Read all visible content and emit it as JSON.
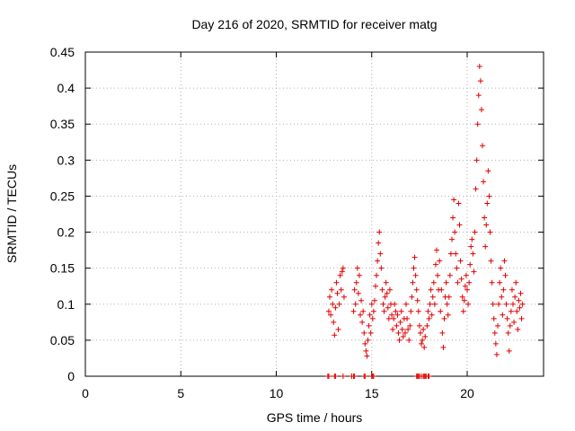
{
  "chart_data": {
    "type": "scatter",
    "title": "Day 216 of 2020, SRMTID for receiver matg",
    "xlabel": "GPS time / hours",
    "ylabel": "SRMTID / TECUs",
    "xlim": [
      0,
      24
    ],
    "ylim": [
      0,
      0.45
    ],
    "x_ticks": [
      0,
      5,
      10,
      15,
      20
    ],
    "x_tick_labels": [
      "0",
      "5",
      "10",
      "15",
      "20"
    ],
    "y_ticks": [
      0,
      0.05,
      0.1,
      0.15,
      0.2,
      0.25,
      0.3,
      0.35,
      0.4,
      0.45
    ],
    "y_tick_labels": [
      "0",
      "0.05",
      "0.1",
      "0.15",
      "0.2",
      "0.25",
      "0.3",
      "0.35",
      "0.4",
      "0.45"
    ],
    "grid": true,
    "marker": "plus",
    "point_color": "#e00000",
    "series": [
      {
        "name": "SRMTID",
        "points": [
          [
            12.7,
            0
          ],
          [
            12.75,
            0
          ],
          [
            13.05,
            0
          ],
          [
            13.1,
            0
          ],
          [
            13.5,
            0
          ],
          [
            13.95,
            0
          ],
          [
            14.05,
            0
          ],
          [
            14.1,
            0
          ],
          [
            14.6,
            0
          ],
          [
            14.65,
            0
          ],
          [
            15.0,
            0
          ],
          [
            15.05,
            0
          ],
          [
            15.1,
            0
          ],
          [
            17.35,
            0
          ],
          [
            17.4,
            0
          ],
          [
            17.45,
            0
          ],
          [
            17.5,
            0
          ],
          [
            17.6,
            0
          ],
          [
            17.7,
            0
          ],
          [
            17.75,
            0
          ],
          [
            17.8,
            0
          ],
          [
            17.85,
            0
          ],
          [
            17.95,
            0
          ],
          [
            18.0,
            0
          ],
          [
            12.75,
            0.09
          ],
          [
            12.8,
            0.11
          ],
          [
            12.85,
            0.085
          ],
          [
            12.9,
            0.12
          ],
          [
            12.95,
            0.1
          ],
          [
            13.0,
            0.075
          ],
          [
            13.05,
            0.057
          ],
          [
            13.1,
            0.095
          ],
          [
            13.15,
            0.13
          ],
          [
            13.2,
            0.115
          ],
          [
            13.25,
            0.065
          ],
          [
            13.3,
            0.1
          ],
          [
            13.35,
            0.14
          ],
          [
            13.4,
            0.12
          ],
          [
            13.45,
            0.145
          ],
          [
            13.5,
            0.15
          ],
          [
            13.55,
            0.11
          ],
          [
            14.05,
            0.09
          ],
          [
            14.1,
            0.12
          ],
          [
            14.15,
            0.1
          ],
          [
            14.2,
            0.13
          ],
          [
            14.25,
            0.15
          ],
          [
            14.3,
            0.115
          ],
          [
            14.35,
            0.14
          ],
          [
            14.4,
            0.085
          ],
          [
            14.45,
            0.105
          ],
          [
            14.5,
            0.075
          ],
          [
            14.55,
            0.09
          ],
          [
            14.6,
            0.06
          ],
          [
            14.65,
            0.045
          ],
          [
            14.7,
            0.035
          ],
          [
            14.75,
            0.028
          ],
          [
            14.8,
            0.05
          ],
          [
            14.85,
            0.07
          ],
          [
            14.9,
            0.085
          ],
          [
            14.95,
            0.06
          ],
          [
            15.0,
            0.1
          ],
          [
            15.05,
            0.08
          ],
          [
            15.1,
            0.09
          ],
          [
            15.15,
            0.105
          ],
          [
            15.2,
            0.125
          ],
          [
            15.25,
            0.14
          ],
          [
            15.3,
            0.16
          ],
          [
            15.35,
            0.185
          ],
          [
            15.4,
            0.2
          ],
          [
            15.45,
            0.17
          ],
          [
            15.5,
            0.15
          ],
          [
            15.55,
            0.12
          ],
          [
            15.6,
            0.1
          ],
          [
            15.65,
            0.09
          ],
          [
            15.7,
            0.11
          ],
          [
            15.75,
            0.13
          ],
          [
            15.8,
            0.115
          ],
          [
            15.85,
            0.095
          ],
          [
            15.9,
            0.08
          ],
          [
            15.95,
            0.12
          ],
          [
            16.0,
            0.1
          ],
          [
            16.05,
            0.085
          ],
          [
            16.1,
            0.065
          ],
          [
            16.15,
            0.08
          ],
          [
            16.2,
            0.1
          ],
          [
            16.25,
            0.09
          ],
          [
            16.3,
            0.07
          ],
          [
            16.35,
            0.085
          ],
          [
            16.4,
            0.06
          ],
          [
            16.45,
            0.05
          ],
          [
            16.5,
            0.075
          ],
          [
            16.55,
            0.09
          ],
          [
            16.6,
            0.065
          ],
          [
            16.65,
            0.055
          ],
          [
            16.7,
            0.08
          ],
          [
            16.75,
            0.06
          ],
          [
            16.8,
            0.1
          ],
          [
            16.85,
            0.08
          ],
          [
            16.9,
            0.065
          ],
          [
            16.95,
            0.05
          ],
          [
            17.0,
            0.07
          ],
          [
            17.05,
            0.09
          ],
          [
            17.1,
            0.11
          ],
          [
            17.15,
            0.13
          ],
          [
            17.2,
            0.15
          ],
          [
            17.25,
            0.165
          ],
          [
            17.3,
            0.14
          ],
          [
            17.35,
            0.12
          ],
          [
            17.4,
            0.105
          ],
          [
            17.45,
            0.09
          ],
          [
            17.5,
            0.07
          ],
          [
            17.55,
            0.06
          ],
          [
            17.6,
            0.045
          ],
          [
            17.65,
            0.05
          ],
          [
            17.7,
            0.065
          ],
          [
            17.75,
            0.04
          ],
          [
            17.8,
            0.055
          ],
          [
            17.9,
            0.07
          ],
          [
            17.95,
            0.09
          ],
          [
            18.0,
            0.08
          ],
          [
            18.05,
            0.1
          ],
          [
            18.1,
            0.12
          ],
          [
            18.15,
            0.085
          ],
          [
            18.2,
            0.11
          ],
          [
            18.25,
            0.13
          ],
          [
            18.3,
            0.1
          ],
          [
            18.35,
            0.155
          ],
          [
            18.4,
            0.175
          ],
          [
            18.45,
            0.14
          ],
          [
            18.5,
            0.12
          ],
          [
            18.55,
            0.16
          ],
          [
            18.6,
            0.09
          ],
          [
            18.65,
            0.12
          ],
          [
            18.7,
            0.06
          ],
          [
            18.75,
            0.04
          ],
          [
            18.8,
            0.08
          ],
          [
            18.85,
            0.11
          ],
          [
            18.9,
            0.13
          ],
          [
            18.95,
            0.1
          ],
          [
            19.0,
            0.085
          ],
          [
            19.05,
            0.11
          ],
          [
            19.1,
            0.14
          ],
          [
            19.15,
            0.17
          ],
          [
            19.2,
            0.19
          ],
          [
            19.25,
            0.22
          ],
          [
            19.3,
            0.245
          ],
          [
            19.35,
            0.2
          ],
          [
            19.4,
            0.17
          ],
          [
            19.45,
            0.15
          ],
          [
            19.5,
            0.13
          ],
          [
            19.55,
            0.24
          ],
          [
            19.6,
            0.21
          ],
          [
            19.65,
            0.16
          ],
          [
            19.7,
            0.135
          ],
          [
            19.75,
            0.11
          ],
          [
            19.8,
            0.09
          ],
          [
            19.85,
            0.105
          ],
          [
            19.9,
            0.125
          ],
          [
            19.95,
            0.14
          ],
          [
            20.0,
            0.12
          ],
          [
            20.05,
            0.1
          ],
          [
            20.1,
            0.13
          ],
          [
            20.15,
            0.155
          ],
          [
            20.2,
            0.18
          ],
          [
            20.25,
            0.19
          ],
          [
            20.3,
            0.17
          ],
          [
            20.35,
            0.145
          ],
          [
            20.4,
            0.2
          ],
          [
            20.45,
            0.26
          ],
          [
            20.5,
            0.3
          ],
          [
            20.55,
            0.35
          ],
          [
            20.6,
            0.39
          ],
          [
            20.65,
            0.43
          ],
          [
            20.7,
            0.41
          ],
          [
            20.75,
            0.37
          ],
          [
            20.8,
            0.32
          ],
          [
            20.85,
            0.27
          ],
          [
            20.9,
            0.22
          ],
          [
            20.95,
            0.18
          ],
          [
            21.0,
            0.21
          ],
          [
            21.05,
            0.24
          ],
          [
            21.1,
            0.285
          ],
          [
            21.15,
            0.25
          ],
          [
            21.2,
            0.2
          ],
          [
            21.25,
            0.16
          ],
          [
            21.3,
            0.13
          ],
          [
            21.35,
            0.1
          ],
          [
            21.4,
            0.08
          ],
          [
            21.45,
            0.06
          ],
          [
            21.5,
            0.045
          ],
          [
            21.55,
            0.03
          ],
          [
            21.6,
            0.07
          ],
          [
            21.65,
            0.1
          ],
          [
            21.7,
            0.13
          ],
          [
            21.75,
            0.15
          ],
          [
            21.8,
            0.11
          ],
          [
            21.85,
            0.085
          ],
          [
            21.9,
            0.12
          ],
          [
            21.95,
            0.16
          ],
          [
            22.0,
            0.14
          ],
          [
            22.05,
            0.1
          ],
          [
            22.1,
            0.08
          ],
          [
            22.15,
            0.06
          ],
          [
            22.2,
            0.035
          ],
          [
            22.25,
            0.07
          ],
          [
            22.3,
            0.09
          ],
          [
            22.35,
            0.12
          ],
          [
            22.4,
            0.1
          ],
          [
            22.45,
            0.075
          ],
          [
            22.5,
            0.11
          ],
          [
            22.55,
            0.13
          ],
          [
            22.6,
            0.09
          ],
          [
            22.65,
            0.065
          ],
          [
            22.7,
            0.105
          ],
          [
            22.75,
            0.095
          ],
          [
            22.8,
            0.115
          ],
          [
            22.85,
            0.08
          ],
          [
            22.9,
            0.1
          ]
        ]
      }
    ]
  }
}
